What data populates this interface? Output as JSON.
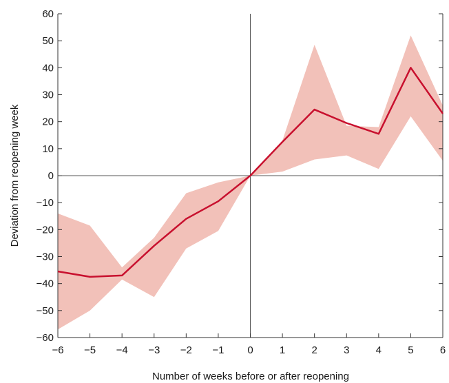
{
  "chart_data": {
    "type": "line",
    "title": "",
    "xlabel": "Number of weeks before or after reopening",
    "ylabel": "Deviation from reopening week",
    "xlim": [
      -6,
      6
    ],
    "ylim": [
      -60,
      60
    ],
    "x_ticks": [
      -6,
      -5,
      -4,
      -3,
      -2,
      -1,
      0,
      1,
      2,
      3,
      4,
      5,
      6
    ],
    "y_ticks": [
      -60,
      -50,
      -40,
      -30,
      -20,
      -10,
      0,
      10,
      20,
      30,
      40,
      50,
      60
    ],
    "x_tick_labels": [
      "−6",
      "−5",
      "−4",
      "−3",
      "−2",
      "−1",
      "0",
      "1",
      "2",
      "3",
      "4",
      "5",
      "6"
    ],
    "y_tick_labels": [
      "−60",
      "−50",
      "−40",
      "−30",
      "−20",
      "−10",
      "0",
      "10",
      "20",
      "30",
      "40",
      "50",
      "60"
    ],
    "grid": false,
    "legend": "none",
    "series": [
      {
        "x": [
          -6,
          -5,
          -4,
          -3,
          -2,
          -1,
          0,
          1,
          2,
          3,
          4,
          5,
          6
        ],
        "values": [
          -35.5,
          -37.5,
          -37,
          -26,
          -16,
          -9.5,
          0,
          12.5,
          24.5,
          19.5,
          15.5,
          40,
          23
        ],
        "lower": [
          -57,
          -50,
          -38.5,
          -45,
          -27,
          -20.5,
          0,
          1.5,
          6,
          7.5,
          2.5,
          22,
          5.5
        ],
        "upper": [
          -14,
          -18.5,
          -34,
          -23,
          -6.5,
          -2.5,
          0,
          13,
          48.5,
          18.5,
          18,
          52,
          26
        ],
        "line_color": "#c8102e",
        "band_color": "#f2c1b9"
      }
    ]
  }
}
